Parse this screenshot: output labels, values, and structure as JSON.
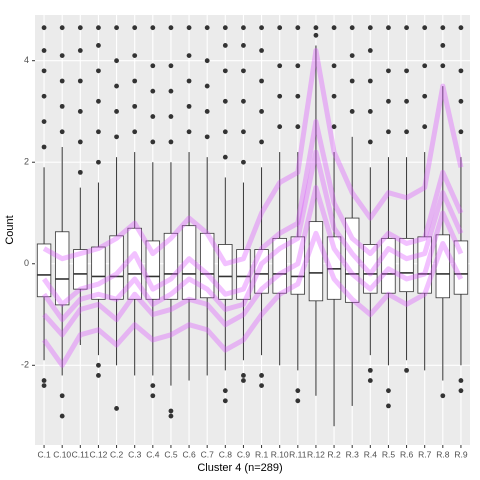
{
  "chart_data": {
    "type": "boxplot",
    "x_label": "Cluster 4 (n=289)",
    "y_label": "Count",
    "categories": [
      "C.1",
      "C.10",
      "C.11",
      "C.12",
      "C.2",
      "C.3",
      "C.4",
      "C.5",
      "C.6",
      "C.7",
      "C.8",
      "C.9",
      "R.1",
      "R.10",
      "R.11",
      "R.12",
      "R.2",
      "R.3",
      "R.4",
      "R.5",
      "R.6",
      "R.7",
      "R.8",
      "R.9"
    ],
    "ylim": [
      -3.57,
      4.9
    ],
    "yticks": [
      -2,
      0,
      2,
      4
    ],
    "grid": true,
    "box_color": "#333333",
    "line_color": "#d94dff",
    "boxes": [
      {
        "low": -1.9,
        "q1": -0.65,
        "median": -0.22,
        "q3": 0.39,
        "high": 1.9,
        "outliers": [
          -2.3,
          -2.4,
          2.3,
          2.8,
          3.3,
          3.8,
          4.2,
          4.65
        ]
      },
      {
        "low": -2.2,
        "q1": -0.81,
        "median": -0.3,
        "q3": 0.63,
        "high": 2.3,
        "outliers": [
          -2.6,
          -3.0,
          2.6,
          3.1,
          3.6,
          4.1,
          4.65
        ]
      },
      {
        "low": -1.6,
        "q1": -0.5,
        "median": -0.2,
        "q3": 0.28,
        "high": 1.5,
        "outliers": [
          1.8,
          2.4,
          3.0,
          3.6,
          4.2,
          4.65
        ]
      },
      {
        "low": -1.8,
        "q1": -0.7,
        "median": -0.25,
        "q3": 0.33,
        "high": 1.6,
        "outliers": [
          -2.0,
          -2.2,
          2.0,
          2.6,
          3.2,
          3.8,
          4.3,
          4.65
        ]
      },
      {
        "low": -2.0,
        "q1": -0.7,
        "median": -0.25,
        "q3": 0.55,
        "high": 2.1,
        "outliers": [
          -2.85,
          2.5,
          3.0,
          3.5,
          4.0,
          4.65
        ]
      },
      {
        "low": -2.2,
        "q1": -0.7,
        "median": -0.2,
        "q3": 0.7,
        "high": 2.2,
        "outliers": [
          2.6,
          3.1,
          3.6,
          4.1,
          4.65
        ]
      },
      {
        "low": -2.2,
        "q1": -0.7,
        "median": -0.25,
        "q3": 0.45,
        "high": 2.0,
        "outliers": [
          -2.4,
          -2.6,
          2.4,
          2.9,
          3.4,
          3.9,
          4.65
        ]
      },
      {
        "low": -2.4,
        "q1": -0.7,
        "median": -0.2,
        "q3": 0.6,
        "high": 2.0,
        "outliers": [
          -2.9,
          -3.0,
          2.4,
          2.9,
          3.4,
          3.9,
          4.65
        ]
      },
      {
        "low": -2.3,
        "q1": -0.7,
        "median": -0.2,
        "q3": 0.75,
        "high": 2.2,
        "outliers": [
          2.6,
          3.1,
          3.6,
          4.1,
          4.65
        ]
      },
      {
        "low": -2.2,
        "q1": -0.67,
        "median": -0.2,
        "q3": 0.6,
        "high": 2.1,
        "outliers": [
          2.5,
          3.0,
          3.5,
          4.0,
          4.65
        ]
      },
      {
        "low": -2.1,
        "q1": -0.7,
        "median": -0.25,
        "q3": 0.38,
        "high": 1.7,
        "outliers": [
          -2.5,
          -2.7,
          2.1,
          2.6,
          3.2,
          3.8,
          4.3,
          4.65
        ]
      },
      {
        "low": -1.9,
        "q1": -0.7,
        "median": -0.25,
        "q3": 0.28,
        "high": 1.6,
        "outliers": [
          -2.2,
          -2.3,
          2.0,
          2.6,
          3.2,
          3.8,
          4.3,
          4.65
        ]
      },
      {
        "low": -1.8,
        "q1": -0.58,
        "median": -0.2,
        "q3": 0.28,
        "high": 1.9,
        "outliers": [
          -2.2,
          -2.4,
          2.4,
          3.0,
          3.6,
          4.2,
          4.65
        ]
      },
      {
        "low": -2.0,
        "q1": -0.58,
        "median": -0.2,
        "q3": 0.5,
        "high": 2.2,
        "outliers": [
          2.7,
          3.3,
          3.9,
          4.65
        ]
      },
      {
        "low": -2.1,
        "q1": -0.6,
        "median": -0.25,
        "q3": 0.53,
        "high": 2.2,
        "outliers": [
          -2.5,
          -2.7,
          2.7,
          3.3,
          3.9,
          4.65
        ]
      },
      {
        "low": -2.6,
        "q1": -0.73,
        "median": -0.18,
        "q3": 0.83,
        "high": 4.3,
        "outliers": [
          4.5,
          4.65
        ]
      },
      {
        "low": -3.2,
        "q1": -0.7,
        "median": -0.1,
        "q3": 0.53,
        "high": 2.2,
        "outliers": [
          2.7,
          3.3,
          3.9,
          4.65
        ]
      },
      {
        "low": -2.8,
        "q1": -0.76,
        "median": -0.2,
        "q3": 0.9,
        "high": 2.5,
        "outliers": [
          3.0,
          3.6,
          4.1,
          4.65
        ]
      },
      {
        "low": -1.8,
        "q1": -0.58,
        "median": -0.2,
        "q3": 0.38,
        "high": 1.9,
        "outliers": [
          -2.1,
          -2.3,
          2.4,
          3.0,
          3.6,
          4.2,
          4.65
        ]
      },
      {
        "low": -2.0,
        "q1": -0.58,
        "median": -0.2,
        "q3": 0.5,
        "high": 2.1,
        "outliers": [
          -2.5,
          -2.8,
          2.6,
          3.2,
          3.8,
          4.65
        ]
      },
      {
        "low": -1.9,
        "q1": -0.55,
        "median": -0.18,
        "q3": 0.5,
        "high": 2.1,
        "outliers": [
          -2.1,
          2.6,
          3.2,
          3.8,
          4.65
        ]
      },
      {
        "low": -2.1,
        "q1": -0.58,
        "median": -0.2,
        "q3": 0.53,
        "high": 2.2,
        "outliers": [
          2.7,
          3.3,
          3.9,
          4.65
        ]
      },
      {
        "low": -2.3,
        "q1": -0.67,
        "median": -0.2,
        "q3": 0.57,
        "high": 3.5,
        "outliers": [
          -2.6,
          3.9,
          4.3,
          4.65
        ]
      },
      {
        "low": -2.0,
        "q1": -0.6,
        "median": -0.2,
        "q3": 0.45,
        "high": 2.1,
        "outliers": [
          -2.3,
          -2.5,
          2.6,
          3.2,
          3.8,
          4.65
        ]
      }
    ],
    "profiles": [
      [
        -0.3,
        -0.8,
        -0.5,
        -0.4,
        -0.2,
        0.2,
        -0.5,
        -0.3,
        0.1,
        -0.2,
        -0.6,
        -0.5,
        0.3,
        0.6,
        0.8,
        2.8,
        1.2,
        0.5,
        0.2,
        0.6,
        0.4,
        0.5,
        1.8,
        1.0
      ],
      [
        -1.0,
        -1.4,
        -0.9,
        -0.8,
        -1.1,
        -0.6,
        -1.0,
        -0.9,
        -0.7,
        -0.8,
        -1.2,
        -1.0,
        -0.5,
        -0.2,
        0.0,
        1.5,
        0.3,
        -0.2,
        -0.5,
        -0.1,
        -0.3,
        -0.2,
        1.0,
        0.2
      ],
      [
        0.3,
        0.1,
        0.2,
        0.3,
        0.5,
        0.8,
        0.2,
        0.5,
        0.9,
        0.6,
        0.0,
        0.1,
        1.0,
        1.6,
        1.8,
        4.2,
        2.2,
        1.4,
        0.9,
        1.4,
        1.3,
        1.5,
        3.5,
        1.9
      ],
      [
        -1.5,
        -2.0,
        -1.4,
        -1.3,
        -1.6,
        -1.2,
        -1.5,
        -1.4,
        -1.2,
        -1.3,
        -1.7,
        -1.5,
        -1.0,
        -0.6,
        -0.4,
        0.6,
        -0.3,
        -0.7,
        -1.0,
        -0.6,
        -0.8,
        -0.6,
        0.4,
        -0.3
      ],
      [
        -0.6,
        -1.1,
        -0.7,
        -0.6,
        -0.7,
        -0.3,
        -0.8,
        -0.6,
        -0.3,
        -0.5,
        -0.9,
        -0.8,
        0.0,
        0.3,
        0.5,
        2.2,
        0.7,
        0.2,
        -0.2,
        0.3,
        0.1,
        0.2,
        1.4,
        0.6
      ]
    ]
  }
}
